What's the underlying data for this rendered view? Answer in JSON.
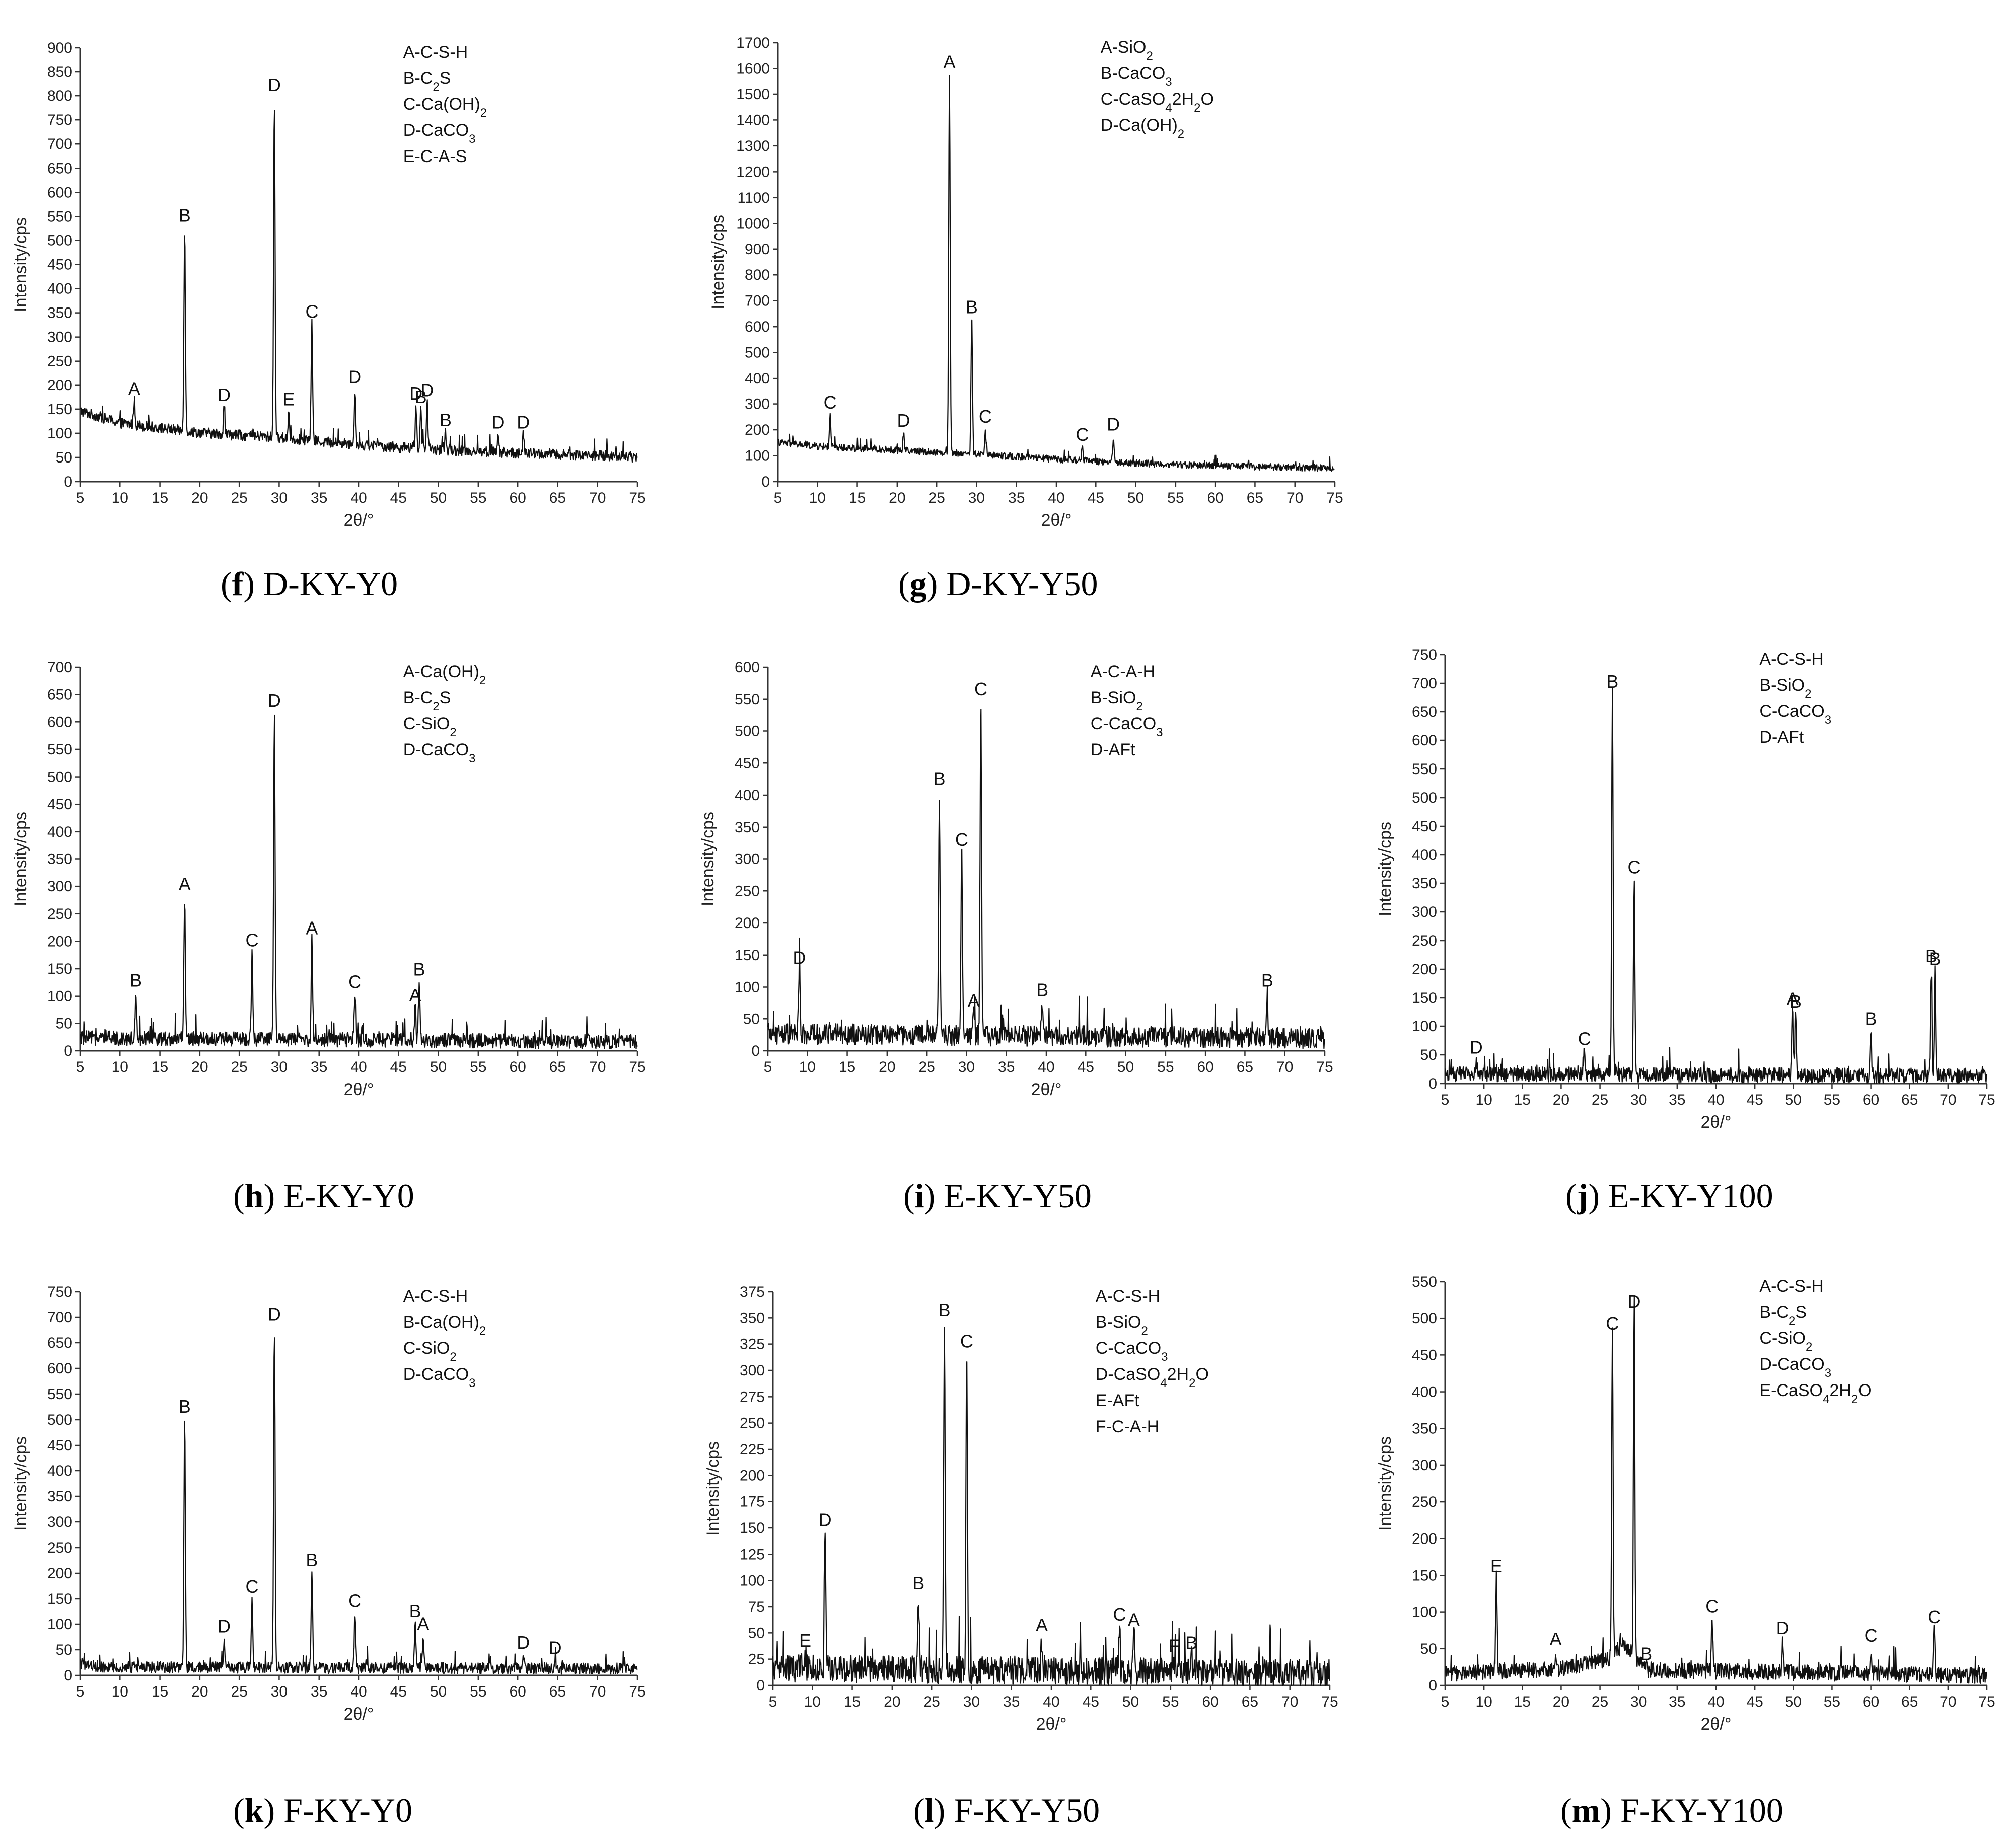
{
  "chart_data": [
    {
      "id": "f",
      "type": "line",
      "caption": {
        "letter": "f",
        "name": "D-KY-Y0"
      },
      "xlabel": "2θ/°",
      "ylabel": "Intensity/cps",
      "xlim": [
        5,
        75
      ],
      "ylim": [
        0,
        900
      ],
      "xticks": [
        5,
        10,
        15,
        20,
        25,
        30,
        35,
        40,
        45,
        50,
        55,
        60,
        65,
        70,
        75
      ],
      "yticks": [
        0,
        50,
        100,
        150,
        200,
        250,
        300,
        350,
        400,
        450,
        500,
        550,
        600,
        650,
        700,
        750,
        800,
        850,
        900
      ],
      "legend": [
        {
          "sym": "A",
          "name": "C-S-H"
        },
        {
          "sym": "B",
          "name": "C",
          "sub": "2",
          "tail": "S"
        },
        {
          "sym": "C",
          "name": "Ca(OH)",
          "sub": "2"
        },
        {
          "sym": "D",
          "name": "CaCO",
          "sub": "3"
        },
        {
          "sym": "E",
          "name": "C-A-S"
        }
      ],
      "baseline": [
        [
          5,
          145
        ],
        [
          10,
          120
        ],
        [
          20,
          100
        ],
        [
          30,
          90
        ],
        [
          40,
          75
        ],
        [
          50,
          65
        ],
        [
          60,
          58
        ],
        [
          75,
          50
        ]
      ],
      "noise": 10,
      "peaks": [
        {
          "x": 11.8,
          "y": 165,
          "label": "A"
        },
        {
          "x": 18.1,
          "y": 525,
          "label": "B"
        },
        {
          "x": 23.1,
          "y": 152,
          "label": "D"
        },
        {
          "x": 29.4,
          "y": 795,
          "label": "D"
        },
        {
          "x": 31.2,
          "y": 143,
          "label": "E"
        },
        {
          "x": 34.1,
          "y": 325,
          "label": "C"
        },
        {
          "x": 39.5,
          "y": 190,
          "label": "D"
        },
        {
          "x": 47.2,
          "y": 155,
          "label": "D"
        },
        {
          "x": 47.8,
          "y": 148,
          "label": "B"
        },
        {
          "x": 48.6,
          "y": 162,
          "label": "D"
        },
        {
          "x": 50.9,
          "y": 100,
          "label": "B"
        },
        {
          "x": 57.5,
          "y": 95,
          "label": "D"
        },
        {
          "x": 60.7,
          "y": 95,
          "label": "D"
        }
      ]
    },
    {
      "id": "g",
      "type": "line",
      "caption": {
        "letter": "g",
        "name": "D-KY-Y50"
      },
      "xlabel": "2θ/°",
      "ylabel": "Intensity/cps",
      "xlim": [
        5,
        75
      ],
      "ylim": [
        0,
        1700
      ],
      "xticks": [
        5,
        10,
        15,
        20,
        25,
        30,
        35,
        40,
        45,
        50,
        55,
        60,
        65,
        70,
        75
      ],
      "yticks": [
        0,
        100,
        200,
        300,
        400,
        500,
        600,
        700,
        800,
        900,
        1000,
        1100,
        1200,
        1300,
        1400,
        1500,
        1600,
        1700
      ],
      "legend": [
        {
          "sym": "A",
          "name": "SiO",
          "sub": "2"
        },
        {
          "sym": "B",
          "name": "CaCO",
          "sub": "3"
        },
        {
          "sym": "C",
          "name": "CaSO",
          "sub": "4",
          "tail": "2H",
          "sub2": "2",
          "tail2": "O"
        },
        {
          "sym": "D",
          "name": "Ca(OH)",
          "sub": "2"
        }
      ],
      "baseline": [
        [
          5,
          150
        ],
        [
          10,
          135
        ],
        [
          20,
          120
        ],
        [
          30,
          105
        ],
        [
          40,
          85
        ],
        [
          50,
          70
        ],
        [
          60,
          60
        ],
        [
          75,
          50
        ]
      ],
      "noise": 12,
      "peaks": [
        {
          "x": 11.6,
          "y": 255,
          "label": "C"
        },
        {
          "x": 20.8,
          "y": 185,
          "label": "D"
        },
        {
          "x": 26.6,
          "y": 1575,
          "label": "A"
        },
        {
          "x": 29.4,
          "y": 625,
          "label": "B"
        },
        {
          "x": 31.1,
          "y": 200,
          "label": "C"
        },
        {
          "x": 43.3,
          "y": 130,
          "label": "C"
        },
        {
          "x": 47.2,
          "y": 170,
          "label": "D"
        }
      ]
    },
    {
      "id": "h",
      "type": "line",
      "caption": {
        "letter": "h",
        "name": "E-KY-Y0"
      },
      "xlabel": "2θ/°",
      "ylabel": "Intensity/cps",
      "xlim": [
        5,
        75
      ],
      "ylim": [
        0,
        700
      ],
      "xticks": [
        5,
        10,
        15,
        20,
        25,
        30,
        35,
        40,
        45,
        50,
        55,
        60,
        65,
        70,
        75
      ],
      "yticks": [
        0,
        50,
        100,
        150,
        200,
        250,
        300,
        350,
        400,
        450,
        500,
        550,
        600,
        650,
        700
      ],
      "legend": [
        {
          "sym": "A",
          "name": "Ca(OH)",
          "sub": "2"
        },
        {
          "sym": "B",
          "name": "C",
          "sub": "2",
          "tail": "S"
        },
        {
          "sym": "C",
          "name": "SiO",
          "sub": "2"
        },
        {
          "sym": "D",
          "name": "CaCO",
          "sub": "3"
        }
      ],
      "baseline": [
        [
          5,
          22
        ],
        [
          75,
          15
        ]
      ],
      "noise": 12,
      "peaks": [
        {
          "x": 12.0,
          "y": 105,
          "label": "B"
        },
        {
          "x": 18.1,
          "y": 280,
          "label": "A"
        },
        {
          "x": 26.6,
          "y": 178,
          "label": "C"
        },
        {
          "x": 29.4,
          "y": 615,
          "label": "D"
        },
        {
          "x": 34.1,
          "y": 200,
          "label": "A"
        },
        {
          "x": 39.5,
          "y": 102,
          "label": "C"
        },
        {
          "x": 47.1,
          "y": 78,
          "label": "A"
        },
        {
          "x": 47.6,
          "y": 125,
          "label": "B"
        }
      ]
    },
    {
      "id": "i",
      "type": "line",
      "caption": {
        "letter": "i",
        "name": "E-KY-Y50"
      },
      "xlabel": "2θ/°",
      "ylabel": "Intensity/cps",
      "xlim": [
        5,
        75
      ],
      "ylim": [
        0,
        600
      ],
      "xticks": [
        5,
        10,
        15,
        20,
        25,
        30,
        35,
        40,
        45,
        50,
        55,
        60,
        65,
        70,
        75
      ],
      "yticks": [
        0,
        50,
        100,
        150,
        200,
        250,
        300,
        350,
        400,
        450,
        500,
        550,
        600
      ],
      "legend": [
        {
          "sym": "A",
          "name": "C-A-H"
        },
        {
          "sym": "B",
          "name": "SiO",
          "sub": "2"
        },
        {
          "sym": "C",
          "name": "CaCO",
          "sub": "3"
        },
        {
          "sym": "D",
          "name": "AFt"
        }
      ],
      "baseline": [
        [
          5,
          25
        ],
        [
          75,
          18
        ]
      ],
      "noise": 15,
      "peaks": [
        {
          "x": 9.0,
          "y": 125,
          "label": "D"
        },
        {
          "x": 26.6,
          "y": 405,
          "label": "B"
        },
        {
          "x": 29.4,
          "y": 310,
          "label": "C"
        },
        {
          "x": 30.9,
          "y": 58,
          "label": "A"
        },
        {
          "x": 31.8,
          "y": 545,
          "label": "C"
        },
        {
          "x": 39.5,
          "y": 75,
          "label": "B"
        },
        {
          "x": 67.8,
          "y": 90,
          "label": "B"
        }
      ]
    },
    {
      "id": "j",
      "type": "line",
      "caption": {
        "letter": "j",
        "name": "E-KY-Y100"
      },
      "xlabel": "2θ/°",
      "ylabel": "Intensity/cps",
      "xlim": [
        5,
        75
      ],
      "ylim": [
        0,
        750
      ],
      "xticks": [
        5,
        10,
        15,
        20,
        25,
        30,
        35,
        40,
        45,
        50,
        55,
        60,
        65,
        70,
        75
      ],
      "yticks": [
        0,
        50,
        100,
        150,
        200,
        250,
        300,
        350,
        400,
        450,
        500,
        550,
        600,
        650,
        700,
        750
      ],
      "legend": [
        {
          "sym": "A",
          "name": "C-S-H"
        },
        {
          "sym": "B",
          "name": "SiO",
          "sub": "2"
        },
        {
          "sym": "C",
          "name": "CaCO",
          "sub": "3"
        },
        {
          "sym": "D",
          "name": "AFt"
        }
      ],
      "baseline": [
        [
          5,
          15
        ],
        [
          75,
          12
        ]
      ],
      "noise": 12,
      "peaks": [
        {
          "x": 9.0,
          "y": 40,
          "label": "D"
        },
        {
          "x": 23.0,
          "y": 55,
          "label": "C"
        },
        {
          "x": 26.6,
          "y": 680,
          "label": "B"
        },
        {
          "x": 29.4,
          "y": 355,
          "label": "C"
        },
        {
          "x": 49.9,
          "y": 125,
          "label": "A"
        },
        {
          "x": 50.3,
          "y": 120,
          "label": "B"
        },
        {
          "x": 60.0,
          "y": 90,
          "label": "B"
        },
        {
          "x": 67.8,
          "y": 200,
          "label": "B"
        },
        {
          "x": 68.3,
          "y": 195,
          "label": "B"
        }
      ]
    },
    {
      "id": "k",
      "type": "line",
      "caption": {
        "letter": "k",
        "name": "F-KY-Y0"
      },
      "xlabel": "2θ/°",
      "ylabel": "Intensity/cps",
      "xlim": [
        5,
        75
      ],
      "ylim": [
        0,
        750
      ],
      "xticks": [
        5,
        10,
        15,
        20,
        25,
        30,
        35,
        40,
        45,
        50,
        55,
        60,
        65,
        70,
        75
      ],
      "yticks": [
        0,
        50,
        100,
        150,
        200,
        250,
        300,
        350,
        400,
        450,
        500,
        550,
        600,
        650,
        700,
        750
      ],
      "legend": [
        {
          "sym": "A",
          "name": "C-S-H"
        },
        {
          "sym": "B",
          "name": "Ca(OH)",
          "sub": "2"
        },
        {
          "sym": "C",
          "name": "SiO",
          "sub": "2"
        },
        {
          "sym": "D",
          "name": "CaCO",
          "sub": "3"
        }
      ],
      "baseline": [
        [
          5,
          22
        ],
        [
          8,
          15
        ],
        [
          75,
          12
        ]
      ],
      "noise": 10,
      "peaks": [
        {
          "x": 18.1,
          "y": 500,
          "label": "B"
        },
        {
          "x": 23.1,
          "y": 70,
          "label": "D"
        },
        {
          "x": 26.6,
          "y": 148,
          "label": "C"
        },
        {
          "x": 29.4,
          "y": 680,
          "label": "D"
        },
        {
          "x": 34.1,
          "y": 200,
          "label": "B"
        },
        {
          "x": 39.5,
          "y": 120,
          "label": "C"
        },
        {
          "x": 47.1,
          "y": 100,
          "label": "B"
        },
        {
          "x": 48.1,
          "y": 75,
          "label": "A"
        },
        {
          "x": 60.7,
          "y": 38,
          "label": "D"
        },
        {
          "x": 64.7,
          "y": 28,
          "label": "D"
        }
      ]
    },
    {
      "id": "l",
      "type": "line",
      "caption": {
        "letter": "l",
        "name": "F-KY-Y50"
      },
      "xlabel": "2θ/°",
      "ylabel": "Intensity/cps",
      "xlim": [
        5,
        75
      ],
      "ylim": [
        0,
        375
      ],
      "xticks": [
        5,
        10,
        15,
        20,
        25,
        30,
        35,
        40,
        45,
        50,
        55,
        60,
        65,
        70,
        75
      ],
      "yticks": [
        0,
        25,
        50,
        75,
        100,
        125,
        150,
        175,
        200,
        225,
        250,
        275,
        300,
        325,
        350,
        375
      ],
      "legend": [
        {
          "sym": "A",
          "name": "C-S-H"
        },
        {
          "sym": "B",
          "name": "SiO",
          "sub": "2"
        },
        {
          "sym": "C",
          "name": "CaCO",
          "sub": "3"
        },
        {
          "sym": "D",
          "name": "CaSO",
          "sub": "4",
          "tail": "2H",
          "sub2": "2",
          "tail2": "O"
        },
        {
          "sym": "E",
          "name": "AFt"
        },
        {
          "sym": "F",
          "name": "C-A-H"
        }
      ],
      "baseline": [
        [
          5,
          15
        ],
        [
          75,
          10
        ]
      ],
      "noise": 12,
      "peaks": [
        {
          "x": 9.1,
          "y": 30,
          "label": "E"
        },
        {
          "x": 11.6,
          "y": 145,
          "label": "D"
        },
        {
          "x": 23.3,
          "y": 85,
          "label": "B"
        },
        {
          "x": 26.6,
          "y": 345,
          "label": "B"
        },
        {
          "x": 29.4,
          "y": 315,
          "label": "C"
        },
        {
          "x": 38.8,
          "y": 45,
          "label": "A"
        },
        {
          "x": 48.6,
          "y": 55,
          "label": "C"
        },
        {
          "x": 50.4,
          "y": 50,
          "label": "A"
        },
        {
          "x": 55.4,
          "y": 25,
          "label": "F"
        },
        {
          "x": 57.6,
          "y": 28,
          "label": "B"
        }
      ]
    },
    {
      "id": "m",
      "type": "line",
      "caption": {
        "letter": "m",
        "name": "F-KY-Y100"
      },
      "xlabel": "2θ/°",
      "ylabel": "Intensity/cps",
      "xlim": [
        5,
        75
      ],
      "ylim": [
        0,
        550
      ],
      "xticks": [
        5,
        10,
        15,
        20,
        25,
        30,
        35,
        40,
        45,
        50,
        55,
        60,
        65,
        70,
        75
      ],
      "yticks": [
        0,
        50,
        100,
        150,
        200,
        250,
        300,
        350,
        400,
        450,
        500,
        550
      ],
      "legend": [
        {
          "sym": "A",
          "name": "C-S-H"
        },
        {
          "sym": "B",
          "name": "C",
          "sub": "2",
          "tail": "S"
        },
        {
          "sym": "C",
          "name": "SiO",
          "sub": "2"
        },
        {
          "sym": "D",
          "name": "CaCO",
          "sub": "3"
        },
        {
          "sym": "E",
          "name": "CaSO",
          "sub": "4",
          "tail": "2H",
          "sub2": "2",
          "tail2": "O"
        }
      ],
      "baseline": [
        [
          5,
          15
        ],
        [
          20,
          22
        ],
        [
          26,
          35
        ],
        [
          28,
          55
        ],
        [
          31,
          20
        ],
        [
          75,
          12
        ]
      ],
      "noise": 10,
      "peaks": [
        {
          "x": 11.6,
          "y": 145,
          "label": "E"
        },
        {
          "x": 19.3,
          "y": 45,
          "label": "A"
        },
        {
          "x": 26.6,
          "y": 475,
          "label": "C"
        },
        {
          "x": 29.4,
          "y": 505,
          "label": "D"
        },
        {
          "x": 31.0,
          "y": 25,
          "label": "B"
        },
        {
          "x": 39.5,
          "y": 90,
          "label": "C"
        },
        {
          "x": 48.6,
          "y": 60,
          "label": "D"
        },
        {
          "x": 60.0,
          "y": 50,
          "label": "C"
        },
        {
          "x": 68.2,
          "y": 75,
          "label": "C"
        }
      ]
    }
  ]
}
